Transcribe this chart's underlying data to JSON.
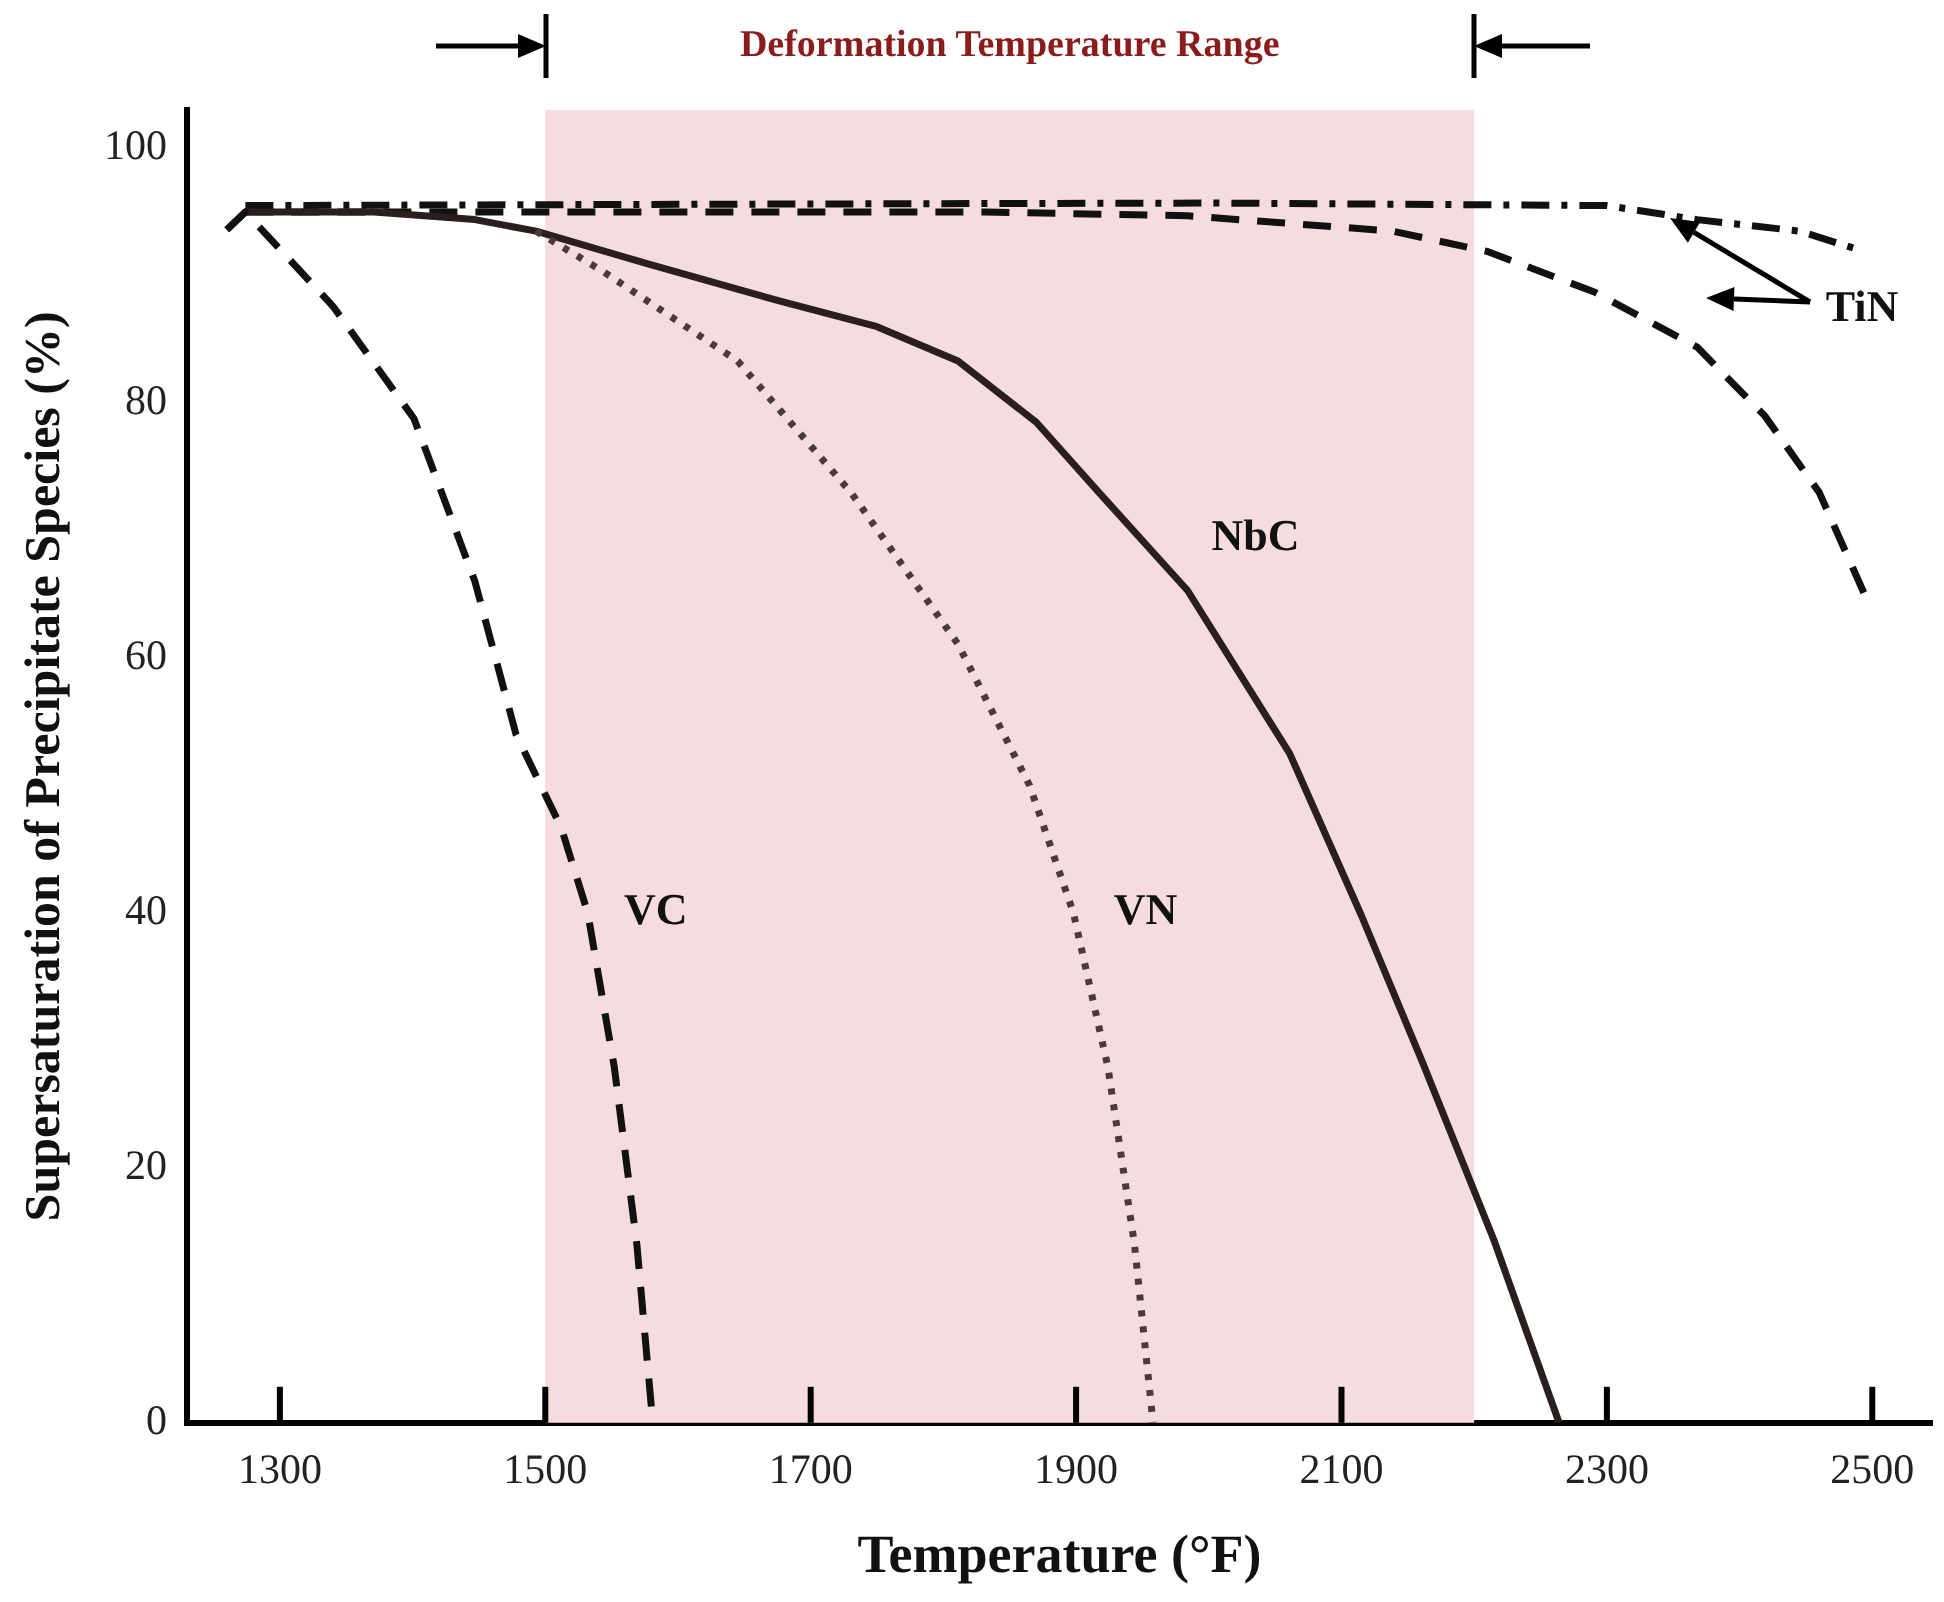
{
  "chart_data": {
    "type": "line",
    "xlabel": "Temperature (°F)",
    "ylabel": "Supersaturation of Precipitate Species (%)",
    "xlim": [
      1230,
      2545
    ],
    "xticks": [
      1300,
      1500,
      1700,
      1900,
      2100,
      2300,
      2500
    ],
    "ylim": [
      0,
      103
    ],
    "yticks": [
      0,
      20,
      40,
      60,
      80,
      100
    ],
    "grid": false,
    "legend": false,
    "marker": "none",
    "series": [
      {
        "name": "VC",
        "color": "#111111",
        "line_style": "dashed",
        "x": [
          1260,
          1274,
          1340,
          1401,
          1447,
          1478,
          1512,
          1532,
          1552,
          1569,
          1581
        ],
        "values": [
          93.6,
          95,
          87.6,
          78.8,
          66,
          54,
          46.7,
          40,
          27.9,
          14,
          0
        ]
      },
      {
        "name": "VN",
        "color": "#4a3a3a",
        "line_style": "dotted",
        "x": [
          1493,
          1544,
          1645,
          1731,
          1811,
          1865,
          1898,
          1924,
          1944,
          1958
        ],
        "values": [
          93.5,
          90.3,
          83.3,
          72.9,
          61.1,
          50,
          40,
          27.9,
          14,
          0
        ]
      },
      {
        "name": "NbC",
        "color": "#2a1e1e",
        "line_style": "solid",
        "x": [
          1260,
          1274,
          1371,
          1447,
          1493,
          1578,
          1677,
          1750,
          1811,
          1870,
          1918,
          1984,
          2061,
          2115,
          2161,
          2215,
          2264
        ],
        "values": [
          93.6,
          95,
          95,
          94.4,
          93.5,
          90.9,
          88,
          86,
          83.3,
          78.5,
          72.9,
          65.3,
          52.5,
          39.8,
          28.3,
          14.3,
          0
        ]
      },
      {
        "color": "#111111",
        "line_style": "dashed",
        "x": [
          1274,
          1831,
          1984,
          2138,
          2210,
          2291,
          2368,
          2419,
          2460,
          2495
        ],
        "values": [
          95,
          95,
          94.7,
          93.5,
          91.9,
          88.7,
          84.4,
          79,
          73,
          64.8
        ]
      },
      {
        "color": "#111111",
        "line_style": "dashdot",
        "x": [
          1274,
          1600,
          2000,
          2300,
          2368,
          2445,
          2491
        ],
        "values": [
          95.5,
          95.6,
          95.7,
          95.5,
          94.4,
          93.5,
          92
        ]
      }
    ],
    "annotations": [
      "TiN"
    ],
    "bands": [
      {
        "axis": "x",
        "from": 1500,
        "to": 2200,
        "label": "Deformation Temperature Range",
        "color": "#f7dcdf"
      }
    ]
  }
}
